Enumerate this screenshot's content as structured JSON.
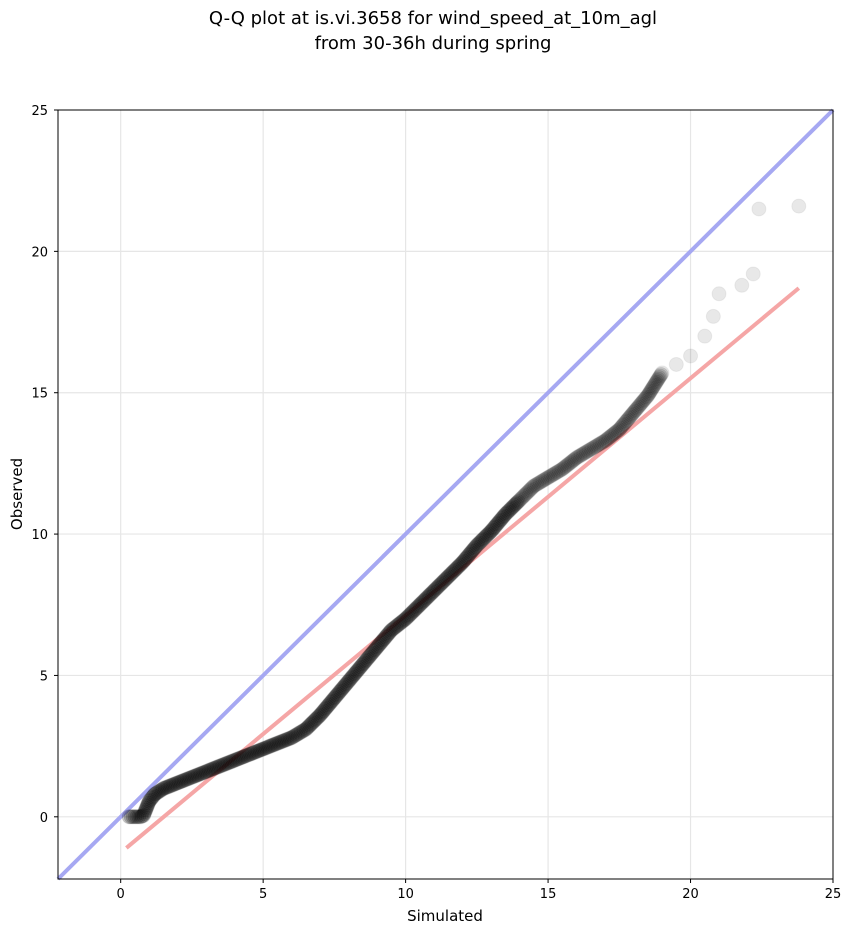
{
  "chart_data": {
    "type": "scatter",
    "title_line1": "Q-Q plot at is.vi.3658 for wind_speed_at_10m_agl",
    "title_line2": "from 30-36h during spring",
    "xlabel": "Simulated",
    "ylabel": "Observed",
    "xlim": [
      -2.2,
      25
    ],
    "ylim": [
      -2.2,
      25
    ],
    "xticks": [
      "0",
      "5",
      "10",
      "15",
      "20",
      "25"
    ],
    "yticks": [
      "0",
      "5",
      "10",
      "15",
      "20",
      "25"
    ],
    "xtick_values": [
      0,
      5,
      10,
      15,
      20,
      25
    ],
    "ytick_values": [
      0,
      5,
      10,
      15,
      20,
      25
    ],
    "grid": true,
    "points": [
      [
        0.3,
        0.0
      ],
      [
        0.5,
        0.0
      ],
      [
        0.7,
        0.0
      ],
      [
        0.8,
        0.05
      ],
      [
        0.9,
        0.3
      ],
      [
        1.0,
        0.55
      ],
      [
        1.2,
        0.8
      ],
      [
        1.5,
        1.0
      ],
      [
        2.0,
        1.2
      ],
      [
        2.5,
        1.4
      ],
      [
        3.0,
        1.6
      ],
      [
        3.5,
        1.8
      ],
      [
        4.0,
        2.0
      ],
      [
        4.5,
        2.2
      ],
      [
        5.0,
        2.4
      ],
      [
        5.5,
        2.6
      ],
      [
        6.0,
        2.8
      ],
      [
        6.5,
        3.1
      ],
      [
        7.0,
        3.6
      ],
      [
        7.5,
        4.2
      ],
      [
        8.0,
        4.8
      ],
      [
        8.5,
        5.4
      ],
      [
        9.0,
        6.0
      ],
      [
        9.5,
        6.6
      ],
      [
        10.0,
        7.0
      ],
      [
        10.5,
        7.5
      ],
      [
        11.0,
        8.0
      ],
      [
        11.5,
        8.5
      ],
      [
        12.0,
        9.0
      ],
      [
        12.5,
        9.6
      ],
      [
        13.0,
        10.1
      ],
      [
        13.5,
        10.7
      ],
      [
        14.0,
        11.2
      ],
      [
        14.5,
        11.7
      ],
      [
        15.0,
        12.0
      ],
      [
        15.5,
        12.3
      ],
      [
        16.0,
        12.7
      ],
      [
        16.5,
        13.0
      ],
      [
        17.0,
        13.3
      ],
      [
        17.5,
        13.7
      ],
      [
        18.0,
        14.3
      ],
      [
        18.5,
        14.9
      ],
      [
        19.0,
        15.7
      ],
      [
        19.5,
        16.0
      ],
      [
        20.0,
        16.3
      ],
      [
        20.5,
        17.0
      ],
      [
        20.8,
        17.7
      ],
      [
        21.0,
        18.5
      ],
      [
        21.8,
        18.8
      ],
      [
        22.2,
        19.2
      ],
      [
        22.4,
        21.5
      ],
      [
        23.8,
        21.6
      ]
    ],
    "identity_line": {
      "x": [
        -2.2,
        25
      ],
      "y": [
        -2.2,
        25
      ],
      "color": "#a6a8f2"
    },
    "fit_line": {
      "x": [
        0.2,
        23.8
      ],
      "y": [
        -1.1,
        18.7
      ],
      "color": "#f5a6a6"
    },
    "marker_color": "#000000"
  }
}
